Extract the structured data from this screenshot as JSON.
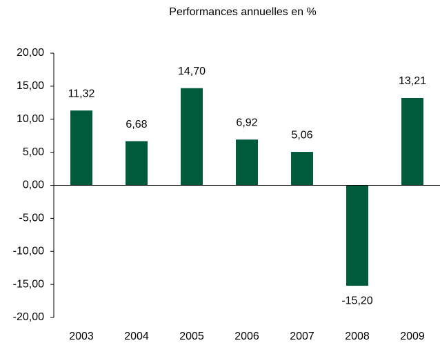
{
  "chart_data": {
    "type": "bar",
    "title": "Performances annuelles en %",
    "categories": [
      "2003",
      "2004",
      "2005",
      "2006",
      "2007",
      "2008",
      "2009"
    ],
    "values": [
      11.32,
      6.68,
      14.7,
      6.92,
      5.06,
      -15.2,
      13.21
    ],
    "value_labels": [
      "11,32",
      "6,68",
      "14,70",
      "6,92",
      "5,06",
      "-15,20",
      "13,21"
    ],
    "color": "#005a3c",
    "ylim": [
      -20,
      20
    ],
    "yticks": [
      {
        "value": -20,
        "label": "-20,00"
      },
      {
        "value": -15,
        "label": "-15,00"
      },
      {
        "value": -10,
        "label": "-10,00"
      },
      {
        "value": -5,
        "label": "-5,00"
      },
      {
        "value": 0,
        "label": "0,00"
      },
      {
        "value": 5,
        "label": "5,00"
      },
      {
        "value": 10,
        "label": "10,00"
      },
      {
        "value": 15,
        "label": "15,00"
      },
      {
        "value": 20,
        "label": "20,00"
      }
    ],
    "grid": false
  }
}
